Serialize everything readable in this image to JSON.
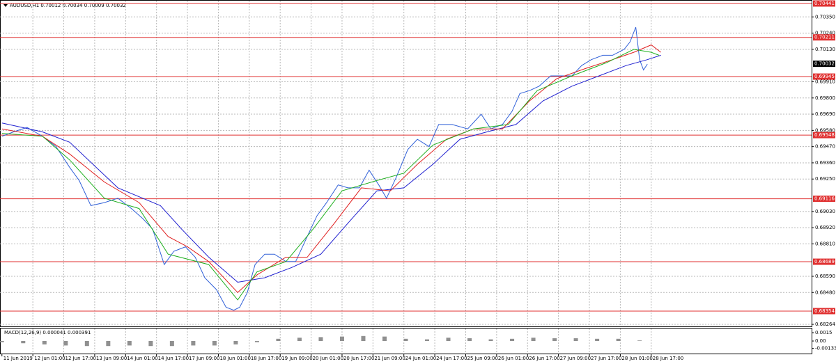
{
  "chart_data": [
    {
      "type": "line",
      "title": "AUDUSD,H1  0.70012 0.70034 0.70009 0.70032",
      "xlim": [
        0,
        420
      ],
      "ylim": [
        0.6825,
        0.7046
      ],
      "grid": true,
      "xticks": [
        {
          "value": 1,
          "label": "11 Jun 2019"
        },
        {
          "value": 17,
          "label": "12 Jun 01:00"
        },
        {
          "value": 33,
          "label": "12 Jun 17:00"
        },
        {
          "value": 49,
          "label": "13 Jun 09:00"
        },
        {
          "value": 65,
          "label": "14 Jun 01:00"
        },
        {
          "value": 81,
          "label": "14 Jun 17:00"
        },
        {
          "value": 97,
          "label": "17 Jun 09:00"
        },
        {
          "value": 113,
          "label": "18 Jun 01:00"
        },
        {
          "value": 129,
          "label": "18 Jun 17:00"
        },
        {
          "value": 145,
          "label": "19 Jun 09:00"
        },
        {
          "value": 161,
          "label": "20 Jun 01:00"
        },
        {
          "value": 177,
          "label": "20 Jun 17:00"
        },
        {
          "value": 193,
          "label": "21 Jun 09:00"
        },
        {
          "value": 209,
          "label": "24 Jun 01:00"
        },
        {
          "value": 225,
          "label": "24 Jun 17:00"
        },
        {
          "value": 241,
          "label": "25 Jun 09:00"
        },
        {
          "value": 257,
          "label": "26 Jun 01:00"
        },
        {
          "value": 273,
          "label": "26 Jun 17:00"
        },
        {
          "value": 289,
          "label": "27 Jun 09:00"
        },
        {
          "value": 305,
          "label": "27 Jun 17:00"
        },
        {
          "value": 321,
          "label": "28 Jun 01:00"
        },
        {
          "value": 337,
          "label": "28 Jun 17:00"
        }
      ],
      "yticks": [
        {
          "value": 0.7035,
          "label": "0.70350"
        },
        {
          "value": 0.7024,
          "label": "0.70240"
        },
        {
          "value": 0.7013,
          "label": "0.70130"
        },
        {
          "value": 0.6991,
          "label": "0.69910"
        },
        {
          "value": 0.698,
          "label": "0.69800"
        },
        {
          "value": 0.6969,
          "label": "0.69690"
        },
        {
          "value": 0.6958,
          "label": "0.69580"
        },
        {
          "value": 0.6947,
          "label": "0.69470"
        },
        {
          "value": 0.6936,
          "label": "0.69360"
        },
        {
          "value": 0.6925,
          "label": "0.69250"
        },
        {
          "value": 0.6903,
          "label": "0.69030"
        },
        {
          "value": 0.6892,
          "label": "0.68920"
        },
        {
          "value": 0.6881,
          "label": "0.68810"
        },
        {
          "value": 0.6859,
          "label": "0.68590"
        },
        {
          "value": 0.6848,
          "label": "0.68480"
        },
        0.68264
      ],
      "levels": [
        0.70441,
        0.70211,
        0.69945,
        0.69548,
        0.69116,
        0.68689,
        0.68354
      ],
      "level_color": "#e03030",
      "current_price": 0.70032,
      "series": [
        {
          "color": "#3060d8",
          "x": [
            1,
            7,
            14,
            22,
            29,
            36,
            41,
            47,
            54,
            61,
            68,
            74,
            79,
            85,
            90,
            96,
            101,
            106,
            112,
            117,
            121,
            124,
            128,
            132,
            137,
            142,
            148,
            153,
            159,
            164,
            169,
            175,
            180,
            186,
            191,
            196,
            200,
            205,
            211,
            216,
            222,
            227,
            234,
            242,
            249,
            254,
            260,
            265,
            269,
            274,
            279,
            285,
            290,
            296,
            301,
            306,
            312,
            317,
            323,
            326,
            329,
            331,
            333,
            335
          ],
          "values": [
            0.6954,
            0.6957,
            0.696,
            0.6954,
            0.6947,
            0.6933,
            0.6924,
            0.6907,
            0.6909,
            0.6912,
            0.6905,
            0.6898,
            0.6891,
            0.6867,
            0.6876,
            0.6879,
            0.6872,
            0.6858,
            0.685,
            0.6838,
            0.6836,
            0.6838,
            0.6848,
            0.6867,
            0.6874,
            0.6874,
            0.6869,
            0.6869,
            0.6886,
            0.69,
            0.6909,
            0.6921,
            0.6919,
            0.6919,
            0.6931,
            0.6921,
            0.6912,
            0.6926,
            0.6945,
            0.6952,
            0.6947,
            0.6962,
            0.6962,
            0.6959,
            0.6969,
            0.6959,
            0.6962,
            0.6971,
            0.6983,
            0.6985,
            0.6988,
            0.6995,
            0.6995,
            0.6995,
            0.7002,
            0.7006,
            0.7009,
            0.7009,
            0.7013,
            0.7018,
            0.7028,
            0.7006,
            0.6999,
            0.7003
          ]
        },
        {
          "color": "#2020d0",
          "x": [
            1,
            22,
            36,
            61,
            83,
            94,
            108,
            123,
            137,
            151,
            166,
            180,
            195,
            209,
            224,
            238,
            252,
            267,
            281,
            296,
            310,
            324,
            335,
            342
          ],
          "values": [
            0.6963,
            0.6957,
            0.695,
            0.6919,
            0.6907,
            0.6891,
            0.6872,
            0.6855,
            0.6858,
            0.6865,
            0.6874,
            0.6895,
            0.6917,
            0.6919,
            0.6935,
            0.6952,
            0.6957,
            0.6962,
            0.6978,
            0.6988,
            0.6995,
            0.7002,
            0.7006,
            0.7009
          ]
        },
        {
          "color": "#e02020",
          "x": [
            1,
            22,
            36,
            54,
            72,
            87,
            97,
            108,
            123,
            133,
            148,
            159,
            173,
            187,
            202,
            216,
            231,
            245,
            260,
            274,
            288,
            303,
            317,
            328,
            337,
            342
          ],
          "values": [
            0.6959,
            0.6954,
            0.6942,
            0.6923,
            0.6909,
            0.6886,
            0.6879,
            0.6869,
            0.6848,
            0.686,
            0.6872,
            0.6872,
            0.6895,
            0.6919,
            0.6917,
            0.6935,
            0.6952,
            0.6959,
            0.6959,
            0.6978,
            0.6993,
            0.7,
            0.7006,
            0.7011,
            0.7016,
            0.7011
          ]
        },
        {
          "color": "#20b020",
          "x": [
            1,
            22,
            36,
            54,
            72,
            87,
            108,
            123,
            133,
            148,
            162,
            177,
            195,
            209,
            224,
            245,
            263,
            278,
            296,
            314,
            328,
            337,
            341
          ],
          "values": [
            0.6956,
            0.6954,
            0.6938,
            0.6912,
            0.6905,
            0.6874,
            0.6867,
            0.6843,
            0.6862,
            0.6869,
            0.6891,
            0.6917,
            0.6924,
            0.6929,
            0.6948,
            0.6959,
            0.6962,
            0.6985,
            0.6995,
            0.7004,
            0.7013,
            0.7011,
            0.7009
          ]
        }
      ]
    },
    {
      "type": "bar",
      "title": "MACD(12,26,9) 0.000041 0.000391",
      "ylim": [
        -0.00225,
        0.00225
      ],
      "yticks": [
        0.0015,
        {
          "value": 0,
          "label": "0.00"
        },
        -0.001331
      ],
      "color": "#909090",
      "x": [
        1,
        12,
        23,
        34,
        45,
        56,
        67,
        78,
        89,
        100,
        111,
        122,
        133,
        144,
        155,
        166,
        177,
        188,
        199,
        210,
        221,
        232,
        243,
        254,
        265,
        276,
        287,
        298,
        309,
        320,
        331
      ],
      "values": [
        -0.0002,
        -0.0004,
        -0.0006,
        -0.0008,
        -0.0009,
        -0.0009,
        -0.0008,
        -0.0009,
        -0.0009,
        -0.0008,
        -0.0008,
        -0.0006,
        -0.0002,
        0.0004,
        0.0006,
        0.0007,
        0.0008,
        0.0009,
        0.0008,
        0.0004,
        0.0003,
        0.0006,
        0.0005,
        0.0003,
        0.0004,
        0.0006,
        0.0005,
        0.0005,
        0.0004,
        0.0004,
        0.0001
      ]
    }
  ]
}
